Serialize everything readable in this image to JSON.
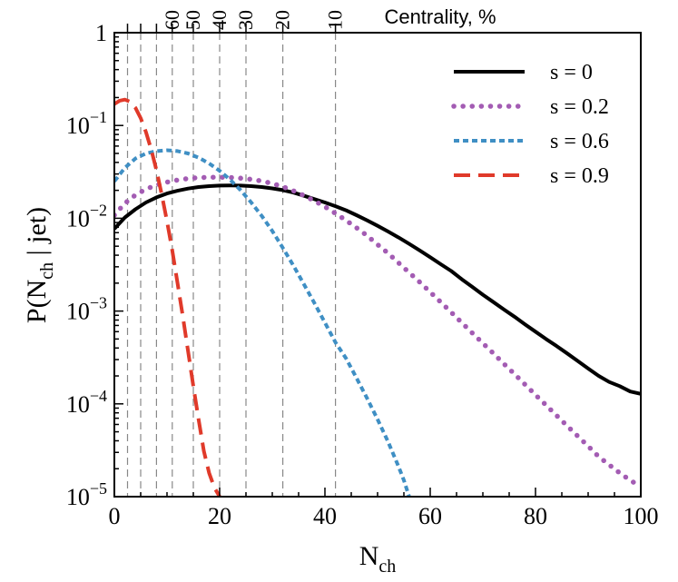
{
  "chart_data": {
    "type": "line",
    "xlabel": "N",
    "xlabel_sub": "ch",
    "ylabel_prefix": "P(N",
    "ylabel_sub": "ch",
    "ylabel_suffix": " | jet)",
    "xlim": [
      0,
      100
    ],
    "ylim": [
      1e-05,
      1
    ],
    "yscale": "log",
    "x_ticks": [
      {
        "value": 0,
        "label": "0"
      },
      {
        "value": 20,
        "label": "20"
      },
      {
        "value": 40,
        "label": "40"
      },
      {
        "value": 60,
        "label": "60"
      },
      {
        "value": 80,
        "label": "80"
      },
      {
        "value": 100,
        "label": "100"
      }
    ],
    "y_ticks": [
      {
        "value": 1,
        "label": "1",
        "exp": ""
      },
      {
        "value": 0.1,
        "label": "10",
        "exp": "−1"
      },
      {
        "value": 0.01,
        "label": "10",
        "exp": "−2"
      },
      {
        "value": 0.001,
        "label": "10",
        "exp": "−3"
      },
      {
        "value": 0.0001,
        "label": "10",
        "exp": "−4"
      },
      {
        "value": 1e-05,
        "label": "10",
        "exp": "−5"
      }
    ],
    "top_axis": {
      "label": "Centrality, %",
      "ticks": [
        {
          "x": 2.5,
          "label": ""
        },
        {
          "x": 5,
          "label": ""
        },
        {
          "x": 8,
          "label": ""
        },
        {
          "x": 11,
          "label": "60"
        },
        {
          "x": 15,
          "label": "50"
        },
        {
          "x": 20,
          "label": "40"
        },
        {
          "x": 25,
          "label": "30"
        },
        {
          "x": 32,
          "label": "20"
        },
        {
          "x": 42,
          "label": "10"
        }
      ]
    },
    "legend_position": "top-right",
    "series": [
      {
        "name": "s = 0",
        "color": "#000000",
        "style": "solid",
        "points": [
          [
            0,
            0.0077
          ],
          [
            2,
            0.0102
          ],
          [
            4,
            0.0125
          ],
          [
            6,
            0.0148
          ],
          [
            8,
            0.0168
          ],
          [
            10,
            0.0185
          ],
          [
            12,
            0.0198
          ],
          [
            14,
            0.0209
          ],
          [
            16,
            0.0217
          ],
          [
            18,
            0.0222
          ],
          [
            20,
            0.0225
          ],
          [
            22,
            0.0226
          ],
          [
            24,
            0.0225
          ],
          [
            26,
            0.0222
          ],
          [
            28,
            0.0217
          ],
          [
            30,
            0.021
          ],
          [
            32,
            0.0201
          ],
          [
            34,
            0.0189
          ],
          [
            36,
            0.0175
          ],
          [
            38,
            0.0161
          ],
          [
            40,
            0.0148
          ],
          [
            42,
            0.0135
          ],
          [
            44,
            0.0122
          ],
          [
            46,
            0.0108
          ],
          [
            48,
            0.0095
          ],
          [
            50,
            0.0083
          ],
          [
            52,
            0.0072
          ],
          [
            54,
            0.0062
          ],
          [
            56,
            0.0053
          ],
          [
            58,
            0.0045
          ],
          [
            60,
            0.0038
          ],
          [
            62,
            0.0032
          ],
          [
            64,
            0.0027
          ],
          [
            66,
            0.0022
          ],
          [
            68,
            0.00182
          ],
          [
            70,
            0.0015
          ],
          [
            72,
            0.00125
          ],
          [
            74,
            0.00104
          ],
          [
            76,
            0.00087
          ],
          [
            78,
            0.00072
          ],
          [
            80,
            0.0006
          ],
          [
            82,
            0.0005
          ],
          [
            84,
            0.00042
          ],
          [
            86,
            0.00035
          ],
          [
            88,
            0.00029
          ],
          [
            90,
            0.00024
          ],
          [
            92,
            0.0002
          ],
          [
            94,
            0.000172
          ],
          [
            96,
            0.000155
          ],
          [
            98,
            0.000136
          ],
          [
            100,
            0.000128
          ]
        ]
      },
      {
        "name": "s = 0.2",
        "color": "#a35cb3",
        "style": "dotted",
        "points": [
          [
            0,
            0.0108
          ],
          [
            2,
            0.0145
          ],
          [
            4,
            0.0178
          ],
          [
            6,
            0.0206
          ],
          [
            8,
            0.0228
          ],
          [
            10,
            0.0245
          ],
          [
            12,
            0.0258
          ],
          [
            14,
            0.0268
          ],
          [
            16,
            0.0274
          ],
          [
            18,
            0.0277
          ],
          [
            20,
            0.0277
          ],
          [
            22,
            0.0275
          ],
          [
            24,
            0.027
          ],
          [
            26,
            0.0263
          ],
          [
            28,
            0.0252
          ],
          [
            30,
            0.0237
          ],
          [
            32,
            0.0219
          ],
          [
            34,
            0.0198
          ],
          [
            36,
            0.0176
          ],
          [
            38,
            0.0154
          ],
          [
            40,
            0.0133
          ],
          [
            42,
            0.0113
          ],
          [
            44,
            0.0095
          ],
          [
            46,
            0.0079
          ],
          [
            48,
            0.0065
          ],
          [
            50,
            0.0052
          ],
          [
            52,
            0.0042
          ],
          [
            54,
            0.0033
          ],
          [
            56,
            0.0026
          ],
          [
            58,
            0.00205
          ],
          [
            60,
            0.0016
          ],
          [
            62,
            0.00125
          ],
          [
            64,
            0.00097
          ],
          [
            66,
            0.00075
          ],
          [
            68,
            0.00058
          ],
          [
            70,
            0.00045
          ],
          [
            72,
            0.00035
          ],
          [
            74,
            0.00027
          ],
          [
            76,
            0.00021
          ],
          [
            78,
            0.000162
          ],
          [
            80,
            0.000125
          ],
          [
            82,
            9.7e-05
          ],
          [
            84,
            7.5e-05
          ],
          [
            86,
            5.8e-05
          ],
          [
            88,
            4.5e-05
          ],
          [
            90,
            3.5e-05
          ],
          [
            92,
            2.7e-05
          ],
          [
            94,
            2.2e-05
          ],
          [
            96,
            1.8e-05
          ],
          [
            98,
            1.5e-05
          ],
          [
            100,
            1.28e-05
          ]
        ]
      },
      {
        "name": "s = 0.6",
        "color": "#3f8fc4",
        "style": "dashed",
        "points": [
          [
            0,
            0.025
          ],
          [
            2,
            0.035
          ],
          [
            4,
            0.044
          ],
          [
            6,
            0.05
          ],
          [
            8,
            0.053
          ],
          [
            10,
            0.054
          ],
          [
            12,
            0.053
          ],
          [
            14,
            0.05
          ],
          [
            16,
            0.045
          ],
          [
            18,
            0.039
          ],
          [
            20,
            0.0325
          ],
          [
            22,
            0.026
          ],
          [
            24,
            0.02
          ],
          [
            26,
            0.0148
          ],
          [
            28,
            0.0106
          ],
          [
            30,
            0.0073
          ],
          [
            32,
            0.0048
          ],
          [
            34,
            0.0031
          ],
          [
            36,
            0.00195
          ],
          [
            38,
            0.00122
          ],
          [
            40,
            0.00075
          ],
          [
            42,
            0.00046
          ],
          [
            44,
            0.00031
          ],
          [
            46,
            0.00019
          ],
          [
            48,
            0.000115
          ],
          [
            50,
            6.8e-05
          ],
          [
            52,
            3.9e-05
          ],
          [
            54,
            2.1e-05
          ],
          [
            55,
            1.5e-05
          ],
          [
            56,
            1e-05
          ]
        ]
      },
      {
        "name": "s = 0.9",
        "color": "#e03a2a",
        "style": "longdash",
        "points": [
          [
            0,
            0.17
          ],
          [
            1,
            0.185
          ],
          [
            2,
            0.19
          ],
          [
            3,
            0.18
          ],
          [
            4,
            0.155
          ],
          [
            5,
            0.12
          ],
          [
            6,
            0.085
          ],
          [
            7,
            0.055
          ],
          [
            8,
            0.033
          ],
          [
            9,
            0.018
          ],
          [
            10,
            0.0093
          ],
          [
            11,
            0.0045
          ],
          [
            12,
            0.002
          ],
          [
            13,
            0.00088
          ],
          [
            14,
            0.00037
          ],
          [
            15,
            0.000155
          ],
          [
            16,
            6.8e-05
          ],
          [
            17,
            3.1e-05
          ],
          [
            18,
            1.8e-05
          ],
          [
            19,
            1.25e-05
          ],
          [
            20,
            1e-05
          ]
        ]
      }
    ]
  }
}
